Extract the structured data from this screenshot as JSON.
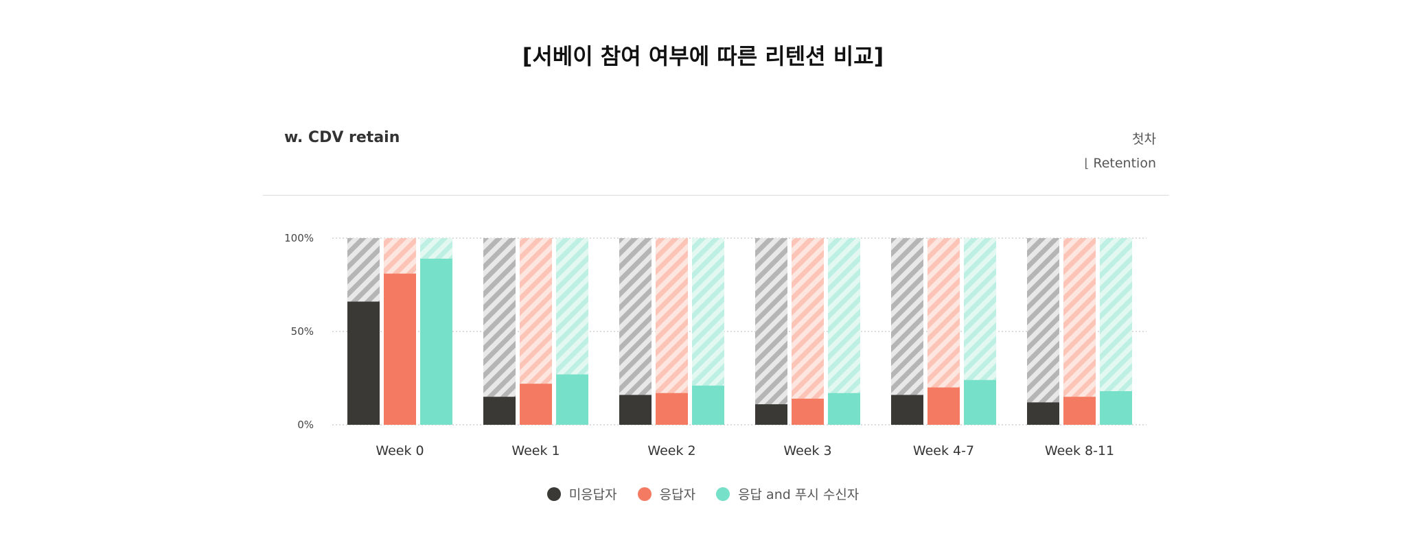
{
  "page": {
    "title": "[서베이 참여 여부에 따른 리텐션 비교]"
  },
  "panel": {
    "title": "w. CDV retain",
    "right_top": "첫차",
    "right_bottom": "Retention",
    "retention_icon": "retention-icon"
  },
  "colors": {
    "non_responder": "#3b3935",
    "responder": "#f47b62",
    "responder_push": "#76e0c8",
    "grid": "#c8c8c8"
  },
  "chart_data": {
    "type": "bar",
    "categories": [
      "Week 0",
      "Week 1",
      "Week 2",
      "Week 3",
      "Week 4-7",
      "Week 8-11"
    ],
    "series": [
      {
        "name": "미응답자",
        "values": [
          66,
          15,
          16,
          11,
          16,
          12
        ]
      },
      {
        "name": "응답자",
        "values": [
          81,
          22,
          17,
          14,
          20,
          15
        ]
      },
      {
        "name": "응답 and 푸시 수신자",
        "values": [
          89,
          27,
          21,
          17,
          24,
          18
        ]
      }
    ],
    "ylim": [
      0,
      100
    ],
    "yticks": [
      "0%",
      "50%",
      "100%"
    ],
    "background_bars": "hatched 100%",
    "grid": true,
    "legend": "bottom-center"
  }
}
